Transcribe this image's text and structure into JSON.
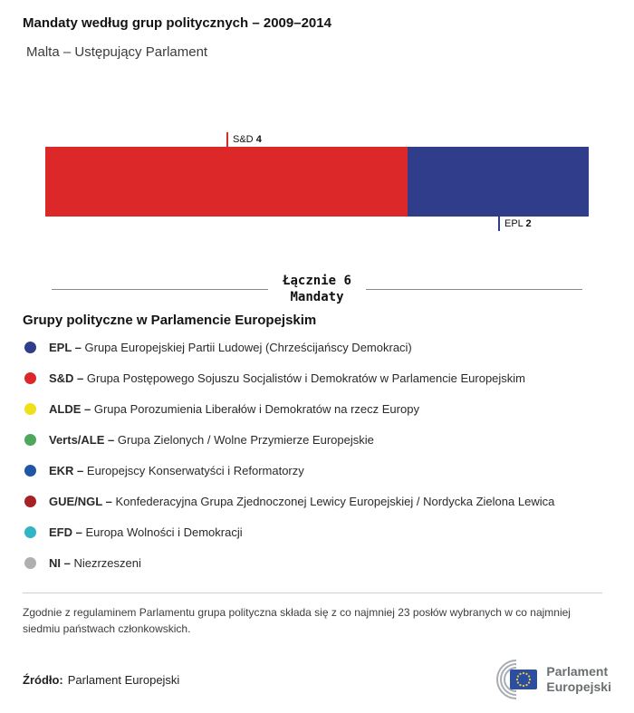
{
  "header": {
    "title": "Mandaty według grup politycznych – 2009–2014",
    "subtitle": "Malta – Ustępujący Parlament"
  },
  "chart_data": {
    "type": "bar",
    "title": "Mandaty według grup politycznych – 2009–2014",
    "region": "Malta – Ustępujący Parlament",
    "total": 6,
    "total_label": "Łącznie 6",
    "unit_label": "Mandaty",
    "series": [
      {
        "name": "S&D",
        "value": 4,
        "color": "#dc2828",
        "label_position": "top"
      },
      {
        "name": "EPL",
        "value": 2,
        "color": "#2f3d8a",
        "label_position": "bottom"
      }
    ]
  },
  "legend": {
    "heading": "Grupy polityczne w Parlamencie Europejskim",
    "items": [
      {
        "label": "EPL",
        "desc": "Grupa Europejskiej Partii Ludowej (Chrześcijańscy Demokraci)",
        "color": "#2f3d8a"
      },
      {
        "label": "S&D",
        "desc": "Grupa Postępowego Sojuszu Socjalistów i Demokratów w Parlamencie Europejskim",
        "color": "#dc2828"
      },
      {
        "label": "ALDE",
        "desc": "Grupa Porozumienia Liberałów i Demokratów na rzecz Europy",
        "color": "#f0e017"
      },
      {
        "label": "Verts/ALE",
        "desc": "Grupa Zielonych / Wolne Przymierze Europejskie",
        "color": "#4ea75b"
      },
      {
        "label": "EKR",
        "desc": "Europejscy Konserwatyści i Reformatorzy",
        "color": "#1f56a6"
      },
      {
        "label": "GUE/NGL",
        "desc": "Konfederacyjna Grupa Zjednoczonej Lewicy Europejskiej / Nordycka Zielona Lewica",
        "color": "#a72126"
      },
      {
        "label": "EFD",
        "desc": "Europa Wolności i Demokracji",
        "color": "#31b5c4"
      },
      {
        "label": "NI",
        "desc": "Niezrzeszeni",
        "color": "#b0b0b0"
      }
    ]
  },
  "footnote": "Zgodnie z regulaminem Parlamentu grupa polityczna składa się z co najmniej 23 posłów wybranych w co najmniej siedmiu państwach członkowskich.",
  "source": {
    "label": "Źródło:",
    "value": "Parlament Europejski"
  },
  "logo": {
    "line1": "Parlament",
    "line2": "Europejski"
  }
}
